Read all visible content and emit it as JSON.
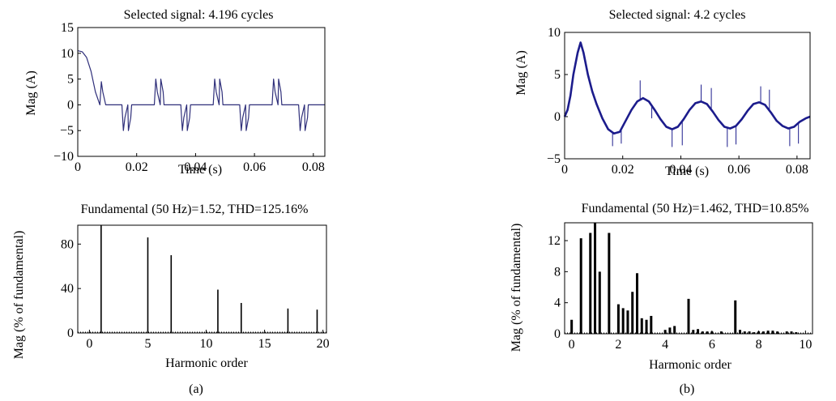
{
  "figure": {
    "panel_labels": [
      "(a)",
      "(b)"
    ]
  },
  "chart_data": [
    {
      "id": "a-time",
      "type": "line",
      "title": "Selected signal: 4.196 cycles",
      "xlabel": "Time (s)",
      "ylabel": "Mag (A)",
      "xlim": [
        0,
        0.0839
      ],
      "ylim": [
        -10,
        15
      ],
      "xticks": [
        0,
        0.02,
        0.04,
        0.06,
        0.08
      ],
      "xtick_labels": [
        "0",
        "0.02",
        "0.04",
        "0.06",
        "0.08"
      ],
      "yticks": [
        -10,
        -5,
        0,
        5,
        10,
        15
      ],
      "ytick_labels": [
        "−10",
        "−5",
        "0",
        "5",
        "10",
        "15"
      ],
      "grid": false,
      "color": "#2f2f7a",
      "series": [
        {
          "x": [
            0,
            0.0015,
            0.003,
            0.0045,
            0.006,
            0.0075,
            0.008,
            0.0085,
            0.0095,
            0.0105,
            0.015,
            0.0155,
            0.016,
            0.017,
            0.0172,
            0.018,
            0.0183,
            0.0185,
            0.026,
            0.0265,
            0.027,
            0.028,
            0.0282,
            0.029,
            0.0293,
            0.0295,
            0.035,
            0.0355,
            0.036,
            0.037,
            0.0372,
            0.038,
            0.0383,
            0.0385,
            0.046,
            0.0465,
            0.047,
            0.048,
            0.0482,
            0.049,
            0.0493,
            0.0495,
            0.055,
            0.0555,
            0.056,
            0.057,
            0.0572,
            0.058,
            0.0583,
            0.0585,
            0.066,
            0.0665,
            0.067,
            0.068,
            0.0682,
            0.069,
            0.0693,
            0.0695,
            0.075,
            0.0755,
            0.076,
            0.077,
            0.0772,
            0.078,
            0.0783,
            0.0785,
            0.0839
          ],
          "y": [
            10.5,
            10.3,
            9.2,
            6.5,
            2.5,
            0,
            4.5,
            2.5,
            0,
            0,
            0,
            -5,
            -2.5,
            0,
            -5,
            -2.5,
            0,
            0,
            0,
            5,
            2.5,
            0,
            5,
            2.5,
            0,
            0,
            0,
            -5,
            -2.5,
            0,
            -5,
            -2.5,
            0,
            0,
            0,
            5,
            2.5,
            0,
            5,
            2.5,
            0,
            0,
            0,
            -5,
            -2.5,
            0,
            -5,
            -2.5,
            0,
            0,
            0,
            5,
            2.5,
            0,
            5,
            2.5,
            0,
            0,
            0,
            -5,
            -2.5,
            0,
            -5,
            -2.5,
            0,
            0,
            0
          ]
        }
      ]
    },
    {
      "id": "a-spectrum",
      "type": "bar",
      "title": "Fundamental (50 Hz)=1.52, THD=125.16%",
      "xlabel": "Harmonic order",
      "ylabel": "Mag (% of fundamental)",
      "xlim": [
        -1,
        20.3
      ],
      "ylim": [
        0,
        97
      ],
      "xticks": [
        0,
        5,
        10,
        15,
        20
      ],
      "xtick_labels": [
        "0",
        "5",
        "10",
        "15",
        "20"
      ],
      "yticks": [
        0,
        40,
        80
      ],
      "ytick_labels": [
        "0",
        "40",
        "80"
      ],
      "grid": false,
      "x": [
        1,
        5,
        7,
        11,
        13,
        17,
        19.5
      ],
      "values": [
        97,
        86,
        70,
        39,
        27,
        22,
        21
      ]
    },
    {
      "id": "b-time",
      "type": "line",
      "title": "Selected signal: 4.2 cycles",
      "xlabel": "Time (s)",
      "ylabel": "Mag (A)",
      "xlim": [
        0,
        0.0845
      ],
      "ylim": [
        -5,
        10
      ],
      "xticks": [
        0,
        0.02,
        0.04,
        0.06,
        0.08
      ],
      "xtick_labels": [
        "0",
        "0.02",
        "0.04",
        "0.06",
        "0.08"
      ],
      "yticks": [
        -5,
        0,
        5,
        10
      ],
      "ytick_labels": [
        "−5",
        "0",
        "5",
        "10"
      ],
      "grid": false,
      "color": "#1c1c8c",
      "series": [
        {
          "x": [
            0,
            0.001,
            0.002,
            0.003,
            0.0045,
            0.0055,
            0.0065,
            0.008,
            0.0095,
            0.011,
            0.013,
            0.015,
            0.017,
            0.019,
            0.021,
            0.023,
            0.025,
            0.027,
            0.029,
            0.031,
            0.033,
            0.035,
            0.037,
            0.039,
            0.041,
            0.043,
            0.045,
            0.047,
            0.049,
            0.051,
            0.053,
            0.055,
            0.057,
            0.059,
            0.061,
            0.063,
            0.065,
            0.067,
            0.069,
            0.071,
            0.073,
            0.075,
            0.077,
            0.079,
            0.081,
            0.083,
            0.0845
          ],
          "y": [
            0,
            0.8,
            2.5,
            5,
            7.6,
            8.8,
            7.6,
            5,
            3,
            1.5,
            -0.2,
            -1.5,
            -2,
            -1.8,
            -0.5,
            0.8,
            1.8,
            2.2,
            1.8,
            0.8,
            -0.3,
            -1.2,
            -1.5,
            -1.2,
            -0.3,
            0.8,
            1.6,
            1.8,
            1.5,
            0.6,
            -0.4,
            -1.2,
            -1.4,
            -1.1,
            -0.3,
            0.7,
            1.5,
            1.7,
            1.4,
            0.5,
            -0.5,
            -1.1,
            -1.4,
            -1.2,
            -0.6,
            -0.2,
            0
          ]
        }
      ],
      "spikes": [
        {
          "x": 0.0165,
          "y": -3.5
        },
        {
          "x": 0.0195,
          "y": -3.2
        },
        {
          "x": 0.026,
          "y": 4.3
        },
        {
          "x": 0.03,
          "y": -0.2
        },
        {
          "x": 0.037,
          "y": -3.6
        },
        {
          "x": 0.0405,
          "y": -3.4
        },
        {
          "x": 0.047,
          "y": 3.8
        },
        {
          "x": 0.0505,
          "y": 3.4
        },
        {
          "x": 0.056,
          "y": -3.6
        },
        {
          "x": 0.059,
          "y": -3.3
        },
        {
          "x": 0.0675,
          "y": 3.6
        },
        {
          "x": 0.0705,
          "y": 3.2
        },
        {
          "x": 0.0775,
          "y": -3.5
        },
        {
          "x": 0.0805,
          "y": -3.2
        }
      ]
    },
    {
      "id": "b-spectrum",
      "type": "bar",
      "title": "Fundamental (50 Hz)=1.462, THD=10.85%",
      "xlabel": "Harmonic order",
      "ylabel": "Mag (% of fundamental)",
      "xlim": [
        -0.3,
        10.3
      ],
      "ylim": [
        0,
        14.3
      ],
      "xticks": [
        0,
        2,
        4,
        6,
        8,
        10
      ],
      "xtick_labels": [
        "0",
        "2",
        "4",
        "6",
        "8",
        "10"
      ],
      "yticks": [
        0,
        4,
        8,
        12
      ],
      "ytick_labels": [
        "0",
        "4",
        "8",
        "12"
      ],
      "grid": false,
      "x": [
        0,
        0.2,
        0.4,
        0.6,
        0.8,
        1.0,
        1.2,
        1.4,
        1.6,
        1.8,
        2.0,
        2.2,
        2.4,
        2.6,
        2.8,
        3.0,
        3.2,
        3.4,
        3.6,
        3.8,
        4.0,
        4.2,
        4.4,
        4.6,
        4.8,
        5.0,
        5.2,
        5.4,
        5.6,
        5.8,
        6.0,
        6.2,
        6.4,
        6.6,
        6.8,
        7.0,
        7.2,
        7.4,
        7.6,
        7.8,
        8.0,
        8.2,
        8.4,
        8.6,
        8.8,
        9.0,
        9.2,
        9.4,
        9.6,
        9.8
      ],
      "values": [
        1.8,
        0,
        12.3,
        0,
        13,
        14.3,
        8,
        0,
        13,
        0,
        3.8,
        3.3,
        3,
        5.4,
        7.8,
        2,
        1.8,
        2.3,
        0,
        0,
        0.5,
        0.8,
        1,
        0,
        0,
        4.5,
        0.5,
        0.6,
        0.3,
        0.3,
        0.3,
        0,
        0.3,
        0,
        0,
        4.3,
        0.5,
        0.3,
        0.3,
        0.2,
        0.3,
        0.3,
        0.4,
        0.4,
        0.3,
        0,
        0.3,
        0.3,
        0.2,
        0
      ]
    }
  ]
}
